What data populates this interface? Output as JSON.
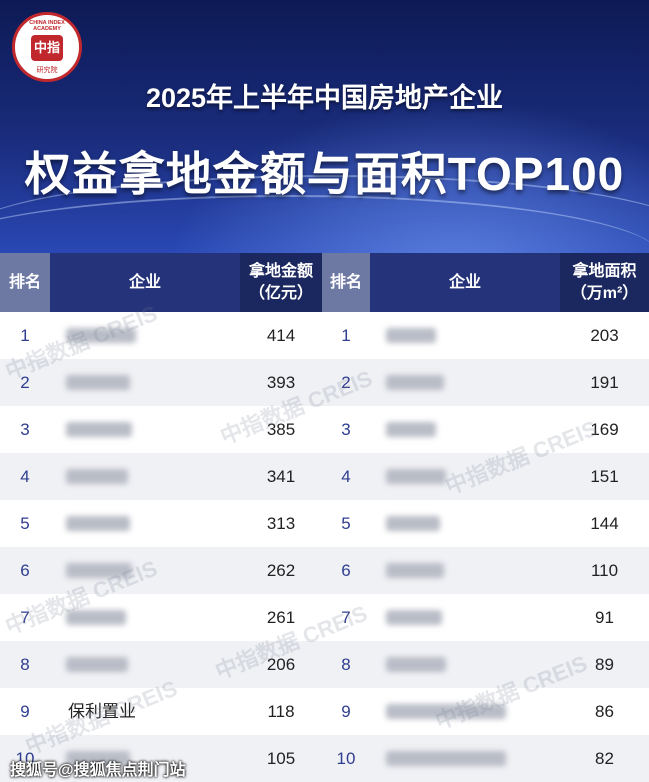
{
  "logo": {
    "name": "中指",
    "en": "CHINA INDEX ACADEMY",
    "sub": "研究院"
  },
  "header": {
    "title": "2025年上半年中国房地产企业",
    "subtitle": "权益拿地金额与面积TOP100"
  },
  "table": {
    "columns": [
      "排名",
      "企业",
      "拿地金额",
      "（亿元）",
      "排名",
      "企业",
      "拿地面积",
      "（万m²）"
    ],
    "amount_rows": [
      {
        "rank": 1,
        "value": 414
      },
      {
        "rank": 2,
        "value": 393
      },
      {
        "rank": 3,
        "value": 385
      },
      {
        "rank": 4,
        "value": 341
      },
      {
        "rank": 5,
        "value": 313
      },
      {
        "rank": 6,
        "value": 262
      },
      {
        "rank": 7,
        "value": 261
      },
      {
        "rank": 8,
        "value": 206
      },
      {
        "rank": 9,
        "company": "保利置业",
        "value": 118
      },
      {
        "rank": 10,
        "value": 105
      }
    ],
    "area_rows": [
      {
        "rank": 1,
        "value": 203
      },
      {
        "rank": 2,
        "value": 191
      },
      {
        "rank": 3,
        "value": 169
      },
      {
        "rank": 4,
        "value": 151
      },
      {
        "rank": 5,
        "value": 144
      },
      {
        "rank": 6,
        "value": 110
      },
      {
        "rank": 7,
        "value": 91
      },
      {
        "rank": 8,
        "value": 89
      },
      {
        "rank": 9,
        "value": 86
      },
      {
        "rank": 10,
        "value": 82
      }
    ]
  },
  "watermark": "中指数据 CREIS",
  "footer": "搜狐号@搜狐焦点荆门站"
}
